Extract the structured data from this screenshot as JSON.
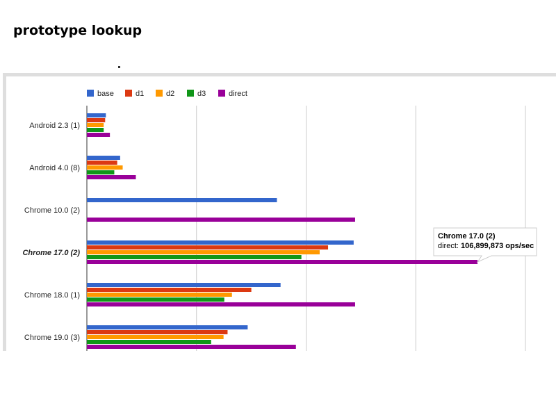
{
  "page": {
    "title": "prototype lookup",
    "dot": "."
  },
  "chart_data": {
    "type": "bar",
    "orientation": "horizontal",
    "categories": [
      "Android 2.3 (1)",
      "Android 4.0 (8)",
      "Chrome 10.0 (2)",
      "Chrome 17.0 (2)",
      "Chrome 18.0 (1)",
      "Chrome 19.0 (3)"
    ],
    "highlighted_category": "Chrome 17.0 (2)",
    "xlim": [
      0,
      120000000
    ],
    "grid": true,
    "legend_position": "top",
    "series": [
      {
        "name": "base",
        "color": "#3366cc",
        "values": [
          5200000,
          9100000,
          52000000,
          73000000,
          53000000,
          44000000
        ]
      },
      {
        "name": "d1",
        "color": "#dc3912",
        "values": [
          5000000,
          8300000,
          null,
          66000000,
          45000000,
          38500000
        ]
      },
      {
        "name": "d2",
        "color": "#ff9900",
        "values": [
          4600000,
          9800000,
          null,
          63700000,
          39700000,
          37400000
        ]
      },
      {
        "name": "d3",
        "color": "#109618",
        "values": [
          4600000,
          7500000,
          null,
          58700000,
          37600000,
          34000000
        ]
      },
      {
        "name": "direct",
        "color": "#990099",
        "values": [
          6300000,
          13400000,
          73400000,
          106899873,
          73400000,
          57200000
        ]
      }
    ],
    "tooltip": {
      "category": "Chrome 17.0 (2)",
      "label": "direct:",
      "value": "106,899,873 ops/sec"
    }
  }
}
